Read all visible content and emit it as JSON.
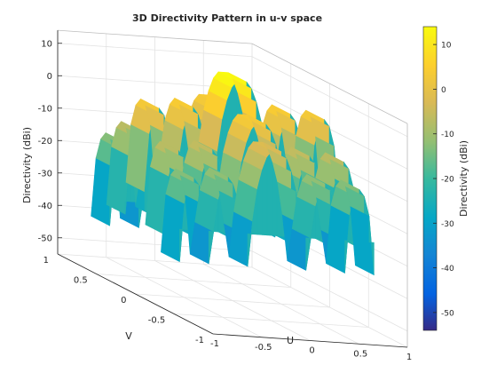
{
  "chart_data": {
    "type": "surface",
    "title": "3D Directivity Pattern in u-v space",
    "xlabel": "U",
    "ylabel": "V",
    "zlabel": "Directivity (dBi)",
    "colorbar_label": "Directivity (dBi)",
    "xlim": [
      -1,
      1
    ],
    "ylim": [
      -1,
      1
    ],
    "zlim": [
      -55,
      14
    ],
    "colormap": "parula",
    "clim": [
      -54,
      14
    ],
    "xticks": [
      "-1",
      "-0.5",
      "0",
      "0.5",
      "1"
    ],
    "yticks": [
      "-1",
      "-0.5",
      "0",
      "0.5",
      "1"
    ],
    "zticks": [
      "-50",
      "-40",
      "-30",
      "-20",
      "-10",
      "0",
      "10"
    ],
    "cbticks": [
      "10",
      "0",
      "-10",
      "-20",
      "-30",
      "-40",
      "-50"
    ],
    "grid": true,
    "u_samples": [
      -1,
      -0.95,
      -0.9,
      -0.85,
      -0.8,
      -0.75,
      -0.7,
      -0.65,
      -0.6,
      -0.55,
      -0.5,
      -0.45,
      -0.4,
      -0.35,
      -0.3,
      -0.25,
      -0.2,
      -0.15,
      -0.1,
      -0.05,
      0,
      0.05,
      0.1,
      0.15,
      0.2,
      0.25,
      0.3,
      0.35,
      0.4,
      0.45,
      0.5,
      0.55,
      0.6,
      0.65,
      0.7,
      0.75,
      0.8,
      0.85,
      0.9,
      0.95,
      1
    ],
    "directivity_profile_dBi": [
      -30,
      -12,
      -6,
      -4,
      -6,
      -12,
      -30,
      -20,
      -10,
      -5,
      -3,
      -5,
      -10,
      -20,
      -30,
      -16,
      -6,
      0,
      4,
      6,
      6,
      6,
      4,
      0,
      -6,
      -16,
      -30,
      -20,
      -10,
      -5,
      -3,
      -5,
      -10,
      -20,
      -30,
      -12,
      -6,
      -4,
      -6,
      -12,
      -30
    ],
    "v_rows": [
      {
        "v": 0.45,
        "gain_dBi": -8
      },
      {
        "v": 0.25,
        "gain_dBi": -2
      },
      {
        "v": 0.0,
        "gain_dBi": 8
      },
      {
        "v": -0.25,
        "gain_dBi": -2
      },
      {
        "v": -0.45,
        "gain_dBi": -8
      }
    ],
    "floor_dBi": -28
  }
}
